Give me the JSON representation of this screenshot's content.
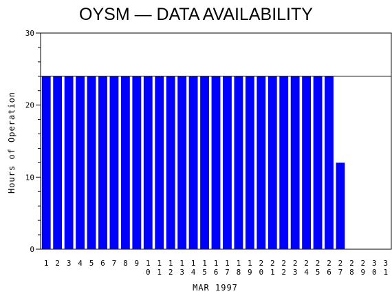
{
  "chart_data": {
    "type": "bar",
    "title": "OYSM — DATA AVAILABILITY",
    "xlabel": "MAR 1997",
    "ylabel": "Hours of Operation",
    "ylim": [
      0,
      30
    ],
    "yticks": [
      0,
      10,
      20,
      30
    ],
    "reference_line": 24,
    "bar_color": "#0000ff",
    "categories": [
      "1",
      "2",
      "3",
      "4",
      "5",
      "6",
      "7",
      "8",
      "9",
      "10",
      "11",
      "12",
      "13",
      "14",
      "15",
      "16",
      "17",
      "18",
      "19",
      "20",
      "21",
      "22",
      "23",
      "24",
      "25",
      "26",
      "27",
      "28",
      "29",
      "30",
      "31"
    ],
    "values": [
      24,
      24,
      24,
      24,
      24,
      24,
      24,
      24,
      24,
      24,
      24,
      24,
      24,
      24,
      24,
      24,
      24,
      24,
      24,
      24,
      24,
      24,
      24,
      24,
      24,
      24,
      12,
      0,
      0,
      0,
      0
    ]
  }
}
